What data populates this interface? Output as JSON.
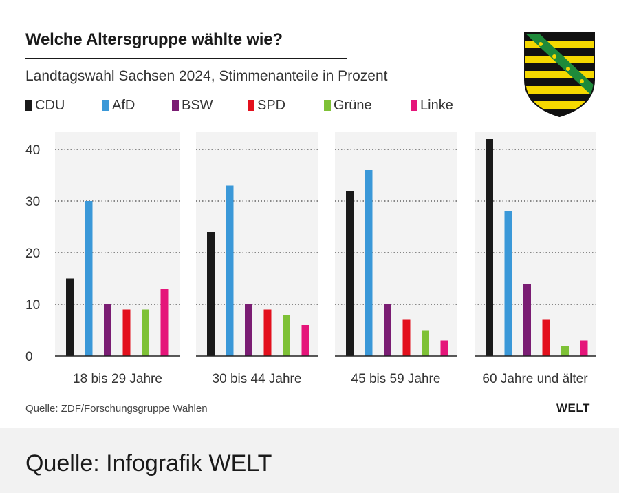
{
  "header": {
    "title": "Welche Altersgruppe wählte wie?",
    "subtitle": "Landtagswahl Sachsen 2024, Stimmenanteile in Prozent"
  },
  "source": "Quelle: ZDF/Forschungsgruppe Wahlen",
  "brand": "WELT",
  "footer": "Quelle: Infografik WELT",
  "emblem": {
    "icon": "saxony-coat-of-arms-icon",
    "colors": [
      "#111111",
      "#f5d800",
      "#1e8a3a"
    ]
  },
  "chart_data": {
    "type": "bar",
    "title": "Welche Altersgruppe wählte wie?",
    "subtitle": "Landtagswahl Sachsen 2024, Stimmenanteile in Prozent",
    "categories": [
      "18 bis 29 Jahre",
      "30 bis 44 Jahre",
      "45 bis 59 Jahre",
      "60 Jahre und älter"
    ],
    "series": [
      {
        "name": "CDU",
        "color": "#1a1a1a",
        "values": [
          15,
          24,
          32,
          42
        ]
      },
      {
        "name": "AfD",
        "color": "#3a98d8",
        "values": [
          30,
          33,
          36,
          28
        ]
      },
      {
        "name": "BSW",
        "color": "#7a1d73",
        "values": [
          10,
          10,
          10,
          14
        ]
      },
      {
        "name": "SPD",
        "color": "#e3101d",
        "values": [
          9,
          9,
          7,
          7
        ]
      },
      {
        "name": "Grüne",
        "color": "#7ec136",
        "values": [
          9,
          8,
          5,
          2
        ]
      },
      {
        "name": "Linke",
        "color": "#e5157a",
        "values": [
          13,
          6,
          3,
          3
        ]
      }
    ],
    "yticks": [
      0,
      10,
      20,
      30,
      40
    ],
    "ylim": [
      0,
      42
    ],
    "grid": true,
    "legend": "top-left"
  }
}
